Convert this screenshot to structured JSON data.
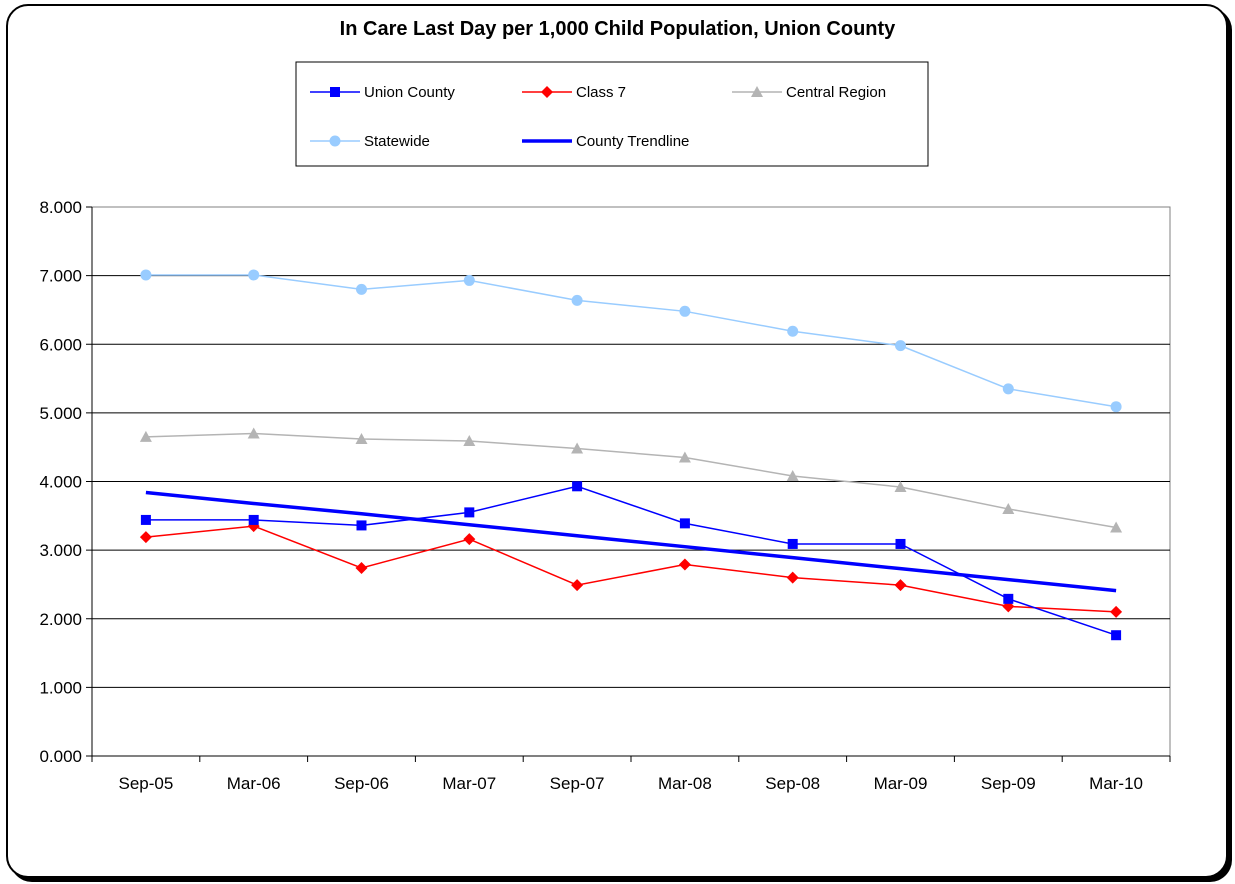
{
  "chart_data": {
    "type": "line",
    "title": "In Care Last Day per 1,000 Child Population, Union County",
    "xlabel": "",
    "ylabel": "",
    "ylim": [
      0,
      8
    ],
    "yticks": [
      "0.000",
      "1.000",
      "2.000",
      "3.000",
      "4.000",
      "5.000",
      "6.000",
      "7.000",
      "8.000"
    ],
    "grid": true,
    "legend_position": "top",
    "categories": [
      "Sep-05",
      "Mar-06",
      "Sep-06",
      "Mar-07",
      "Sep-07",
      "Mar-08",
      "Sep-08",
      "Mar-09",
      "Sep-09",
      "Mar-10"
    ],
    "series": [
      {
        "name": "Union County",
        "color": "#0000ff",
        "marker": "square",
        "line_width": 1.5,
        "values": [
          3.44,
          3.44,
          3.36,
          3.55,
          3.93,
          3.39,
          3.09,
          3.09,
          2.29,
          1.76
        ]
      },
      {
        "name": "Class 7",
        "color": "#ff0000",
        "marker": "diamond",
        "line_width": 1.5,
        "values": [
          3.19,
          3.35,
          2.74,
          3.16,
          2.49,
          2.79,
          2.6,
          2.49,
          2.18,
          2.1
        ]
      },
      {
        "name": "Central Region",
        "color": "#b4b4b4",
        "marker": "triangle",
        "line_width": 1.5,
        "values": [
          4.65,
          4.7,
          4.62,
          4.59,
          4.48,
          4.35,
          4.08,
          3.92,
          3.6,
          3.33
        ]
      },
      {
        "name": "Statewide",
        "color": "#99ccff",
        "marker": "circle",
        "line_width": 1.5,
        "values": [
          7.01,
          7.01,
          6.8,
          6.93,
          6.64,
          6.48,
          6.19,
          5.98,
          5.35,
          5.09
        ]
      },
      {
        "name": "County Trendline",
        "color": "#0000ff",
        "marker": "none",
        "line_width": 3.5,
        "values": [
          3.84,
          3.68,
          3.53,
          3.37,
          3.21,
          3.05,
          2.89,
          2.73,
          2.57,
          2.41
        ]
      }
    ]
  }
}
